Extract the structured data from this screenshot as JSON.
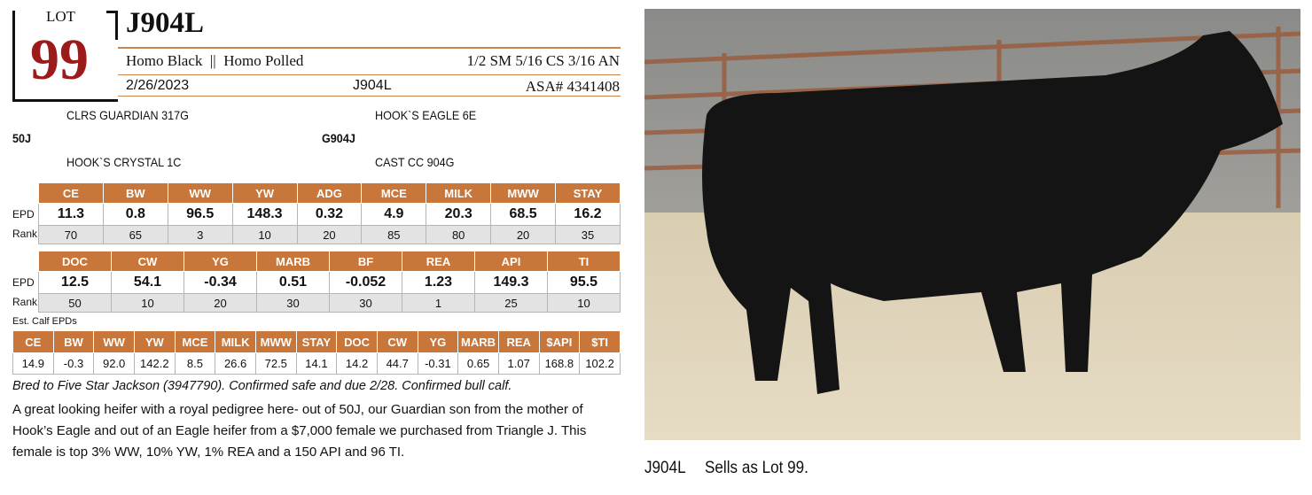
{
  "lot": {
    "label": "LOT",
    "number": "99"
  },
  "header": {
    "name": "J904L",
    "traits": "Homo Black  ||  Homo Polled",
    "breed": "1/2 SM 5/16 CS 3/16 AN",
    "birth_date": "2/26/2023",
    "tag": "J904L",
    "registration": "ASA# 4341408"
  },
  "pedigree": {
    "sire": "50J",
    "sire_sire": "CLRS GUARDIAN 317G",
    "sire_dam": "HOOK`S CRYSTAL 1C",
    "dam": "G904J",
    "dam_sire": "HOOK`S EAGLE 6E",
    "dam_dam": "CAST CC 904G"
  },
  "epd_table_1": {
    "headers": [
      "CE",
      "BW",
      "WW",
      "YW",
      "ADG",
      "MCE",
      "MILK",
      "MWW",
      "STAY"
    ],
    "row_labels": [
      "EPD",
      "Rank"
    ],
    "epd": [
      "11.3",
      "0.8",
      "96.5",
      "148.3",
      "0.32",
      "4.9",
      "20.3",
      "68.5",
      "16.2"
    ],
    "rank": [
      "70",
      "65",
      "3",
      "10",
      "20",
      "85",
      "80",
      "20",
      "35"
    ]
  },
  "epd_table_2": {
    "headers": [
      "DOC",
      "CW",
      "YG",
      "MARB",
      "BF",
      "REA",
      "API",
      "TI"
    ],
    "row_labels": [
      "EPD",
      "Rank"
    ],
    "epd": [
      "12.5",
      "54.1",
      "-0.34",
      "0.51",
      "-0.052",
      "1.23",
      "149.3",
      "95.5"
    ],
    "rank": [
      "50",
      "10",
      "20",
      "30",
      "30",
      "1",
      "25",
      "10"
    ]
  },
  "calf_epds": {
    "title": "Est. Calf EPDs",
    "headers": [
      "CE",
      "BW",
      "WW",
      "YW",
      "MCE",
      "MILK",
      "MWW",
      "STAY",
      "DOC",
      "CW",
      "YG",
      "MARB",
      "REA",
      "$API",
      "$TI"
    ],
    "values": [
      "14.9",
      "-0.3",
      "92.0",
      "142.2",
      "8.5",
      "26.6",
      "72.5",
      "14.1",
      "14.2",
      "44.7",
      "-0.31",
      "0.65",
      "1.07",
      "168.8",
      "102.2"
    ]
  },
  "notes": {
    "breeding": "Bred to Five Star Jackson (3947790). Confirmed safe and due 2/28. Confirmed bull calf.",
    "description": "A great looking heifer with a royal pedigree here- out of 50J, our Guardian son from the mother of Hook’s Eagle and out of an Eagle heifer from a $7,000 female we purchased from Triangle J. This female is top 3% WW, 10% YW, 1% REA and a 150 API and 96 TI."
  },
  "photo_caption": {
    "tag": "J904L",
    "text": "Sells as Lot 99."
  }
}
